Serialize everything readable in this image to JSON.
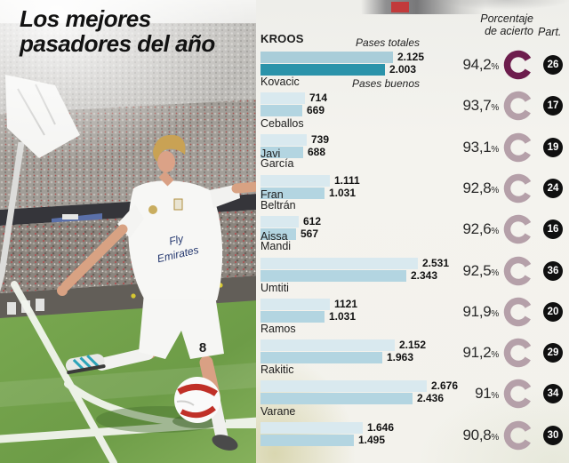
{
  "title": {
    "line1": "Los mejores",
    "line2": "pasadores del año"
  },
  "photo": {
    "shirt_sponsor_line1": "Fly",
    "shirt_sponsor_line2": "Emirates",
    "shorts_number": "8"
  },
  "panel": {
    "header_accuracy_line1": "Porcentaje",
    "header_accuracy_line2": "de acierto",
    "header_appearances": "Part.",
    "series_total_label": "Pases totales",
    "series_good_label": "Pases buenos",
    "percent_suffix": "%"
  },
  "colors": {
    "bar_total": "#d9e9ef",
    "bar_good": "#b3d5e1",
    "bar_total_highlight": "#a9cdd9",
    "bar_good_highlight": "#2b93aa",
    "donut": "#b5a0a9",
    "donut_highlight": "#6d1d4d",
    "badge_background": "#101010"
  },
  "chart_data": {
    "type": "bar",
    "orientation": "horizontal",
    "title": "Los mejores pasadores del año",
    "series": [
      {
        "name": "Pases totales"
      },
      {
        "name": "Pases buenos"
      }
    ],
    "legend_position": "inline-top",
    "players": [
      {
        "name_lines": [
          "KROOS"
        ],
        "highlight": true,
        "pases_totales": 2125,
        "pases_totales_label": "2.125",
        "pases_buenos": 2003,
        "pases_buenos_label": "2.003",
        "accuracy_pct": 94.2,
        "accuracy_label": "94,2",
        "appearances": "26"
      },
      {
        "name_lines": [
          "Kovacic"
        ],
        "highlight": false,
        "pases_totales": 714,
        "pases_totales_label": "714",
        "pases_buenos": 669,
        "pases_buenos_label": "669",
        "accuracy_pct": 93.7,
        "accuracy_label": "93,7",
        "appearances": "17"
      },
      {
        "name_lines": [
          "Ceballos"
        ],
        "highlight": false,
        "pases_totales": 739,
        "pases_totales_label": "739",
        "pases_buenos": 688,
        "pases_buenos_label": "688",
        "accuracy_pct": 93.1,
        "accuracy_label": "93,1",
        "appearances": "19"
      },
      {
        "name_lines": [
          "Javi",
          "García"
        ],
        "highlight": false,
        "pases_totales": 1111,
        "pases_totales_label": "1.111",
        "pases_buenos": 1031,
        "pases_buenos_label": "1.031",
        "accuracy_pct": 92.8,
        "accuracy_label": "92,8",
        "appearances": "24"
      },
      {
        "name_lines": [
          "Fran",
          "Beltrán"
        ],
        "highlight": false,
        "pases_totales": 612,
        "pases_totales_label": "612",
        "pases_buenos": 567,
        "pases_buenos_label": "567",
        "accuracy_pct": 92.6,
        "accuracy_label": "92,6",
        "appearances": "16"
      },
      {
        "name_lines": [
          "Aissa",
          "Mandi"
        ],
        "highlight": false,
        "pases_totales": 2531,
        "pases_totales_label": "2.531",
        "pases_buenos": 2343,
        "pases_buenos_label": "2.343",
        "accuracy_pct": 92.5,
        "accuracy_label": "92,5",
        "appearances": "36"
      },
      {
        "name_lines": [
          "Umtiti"
        ],
        "highlight": false,
        "pases_totales": 1121,
        "pases_totales_label": "1121",
        "pases_buenos": 1031,
        "pases_buenos_label": "1.031",
        "accuracy_pct": 91.9,
        "accuracy_label": "91,9",
        "appearances": "20"
      },
      {
        "name_lines": [
          "Ramos"
        ],
        "highlight": false,
        "pases_totales": 2152,
        "pases_totales_label": "2.152",
        "pases_buenos": 1963,
        "pases_buenos_label": "1.963",
        "accuracy_pct": 91.2,
        "accuracy_label": "91,2",
        "appearances": "29"
      },
      {
        "name_lines": [
          "Rakitic"
        ],
        "highlight": false,
        "pases_totales": 2676,
        "pases_totales_label": "2.676",
        "pases_buenos": 2436,
        "pases_buenos_label": "2.436",
        "accuracy_pct": 91.0,
        "accuracy_label": "91",
        "appearances": "34"
      },
      {
        "name_lines": [
          "Varane"
        ],
        "highlight": false,
        "pases_totales": 1646,
        "pases_totales_label": "1.646",
        "pases_buenos": 1495,
        "pases_buenos_label": "1.495",
        "accuracy_pct": 90.8,
        "accuracy_label": "90,8",
        "appearances": "30"
      }
    ]
  }
}
